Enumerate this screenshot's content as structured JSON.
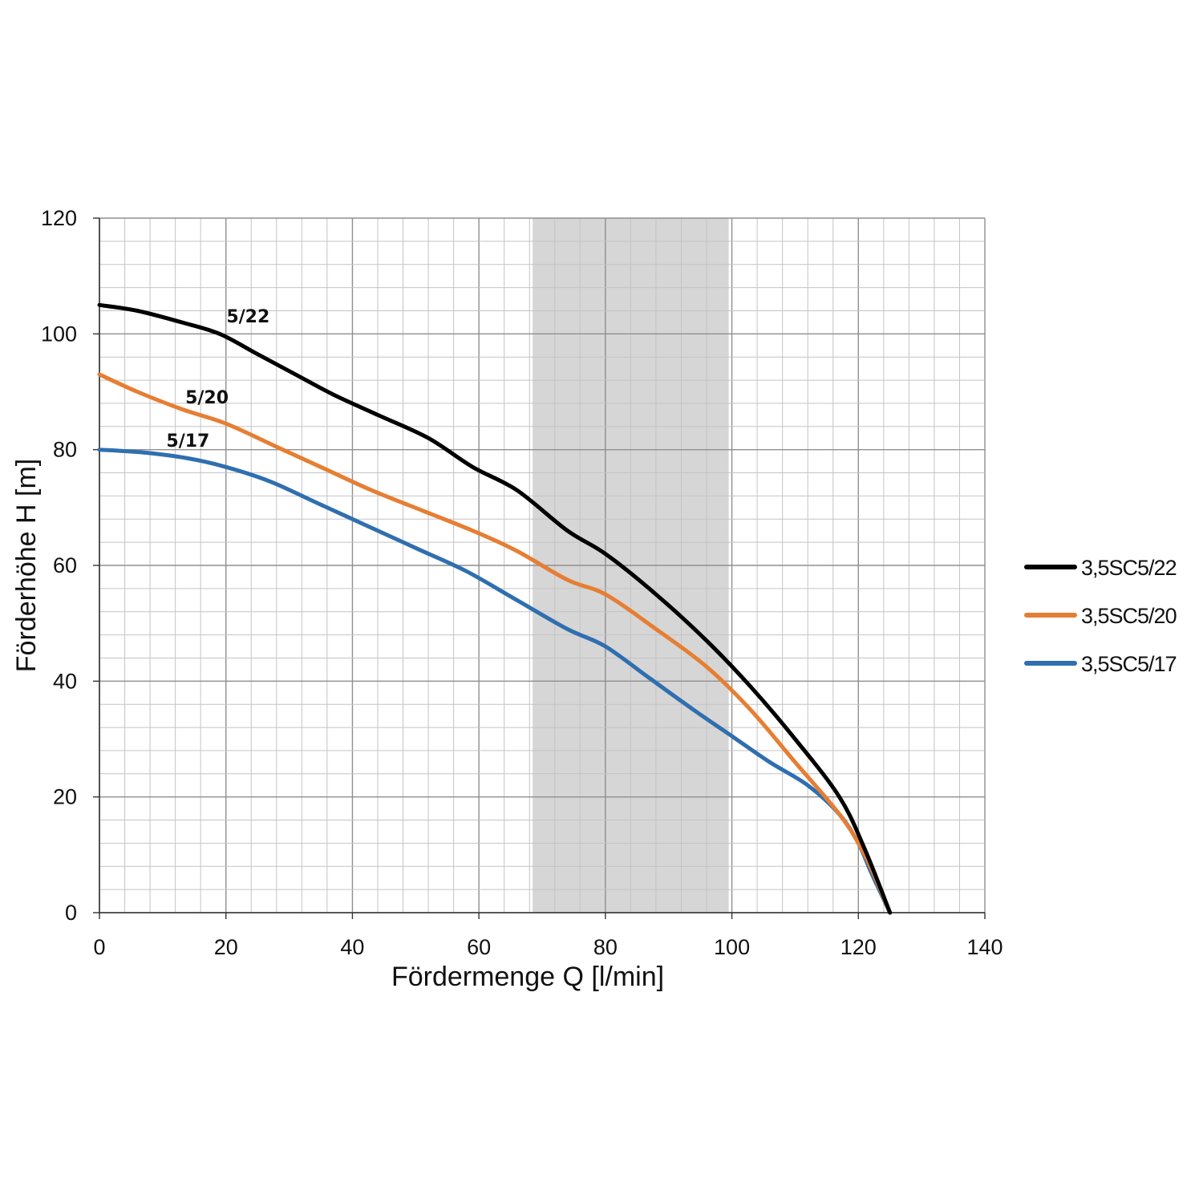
{
  "chart_data": {
    "type": "line",
    "xlabel": "Fördermenge Q [l/min]",
    "ylabel": "Förderhöhe H [m]",
    "xlim": [
      0,
      140
    ],
    "ylim": [
      0,
      120
    ],
    "x_ticks": [
      "0",
      "20",
      "40",
      "60",
      "80",
      "100",
      "120",
      "140"
    ],
    "y_ticks": [
      "0",
      "20",
      "40",
      "60",
      "80",
      "100",
      "120"
    ],
    "grid": true,
    "minor_grid_x_step": 4,
    "minor_grid_y_step": 4,
    "shaded_region": {
      "x_from": 68.5,
      "x_to": 99.5,
      "color": "#d6d6d6"
    },
    "legend_position": "right",
    "series": [
      {
        "name": "3,5SC5/22",
        "label": "5/22",
        "color": "#000000",
        "x": [
          0,
          6,
          13,
          19,
          25,
          31,
          37,
          44,
          52,
          59,
          66,
          74,
          80,
          88,
          96,
          103,
          110,
          117,
          121,
          125
        ],
        "y": [
          105,
          104,
          102,
          100,
          96.5,
          93,
          89.5,
          86,
          82,
          77,
          73,
          66,
          62,
          55,
          47,
          39,
          30,
          20,
          11,
          0
        ]
      },
      {
        "name": "3,5SC5/20",
        "label": "5/20",
        "color": "#e67e33",
        "x": [
          0,
          6,
          13,
          20,
          28,
          35,
          43,
          51,
          59,
          66,
          74,
          80,
          88,
          96,
          103,
          110,
          117,
          121,
          125
        ],
        "y": [
          93,
          90,
          87,
          84.5,
          80.5,
          77,
          73,
          69.5,
          66,
          62.5,
          57.5,
          55,
          49,
          42.5,
          35,
          26,
          17,
          10,
          0
        ]
      },
      {
        "name": "3,5SC5/17",
        "label": "5/17",
        "color": "#2f6fb0",
        "x": [
          0,
          7,
          14,
          20,
          27,
          34,
          42,
          50,
          58,
          66,
          74,
          80,
          87,
          94,
          100,
          106,
          112,
          117,
          120,
          122,
          125
        ],
        "y": [
          80,
          79.5,
          78.5,
          77,
          74.5,
          71,
          67,
          63,
          59,
          54,
          49,
          46,
          40.5,
          35,
          30.5,
          26,
          22,
          17,
          12,
          7,
          0
        ]
      }
    ]
  }
}
